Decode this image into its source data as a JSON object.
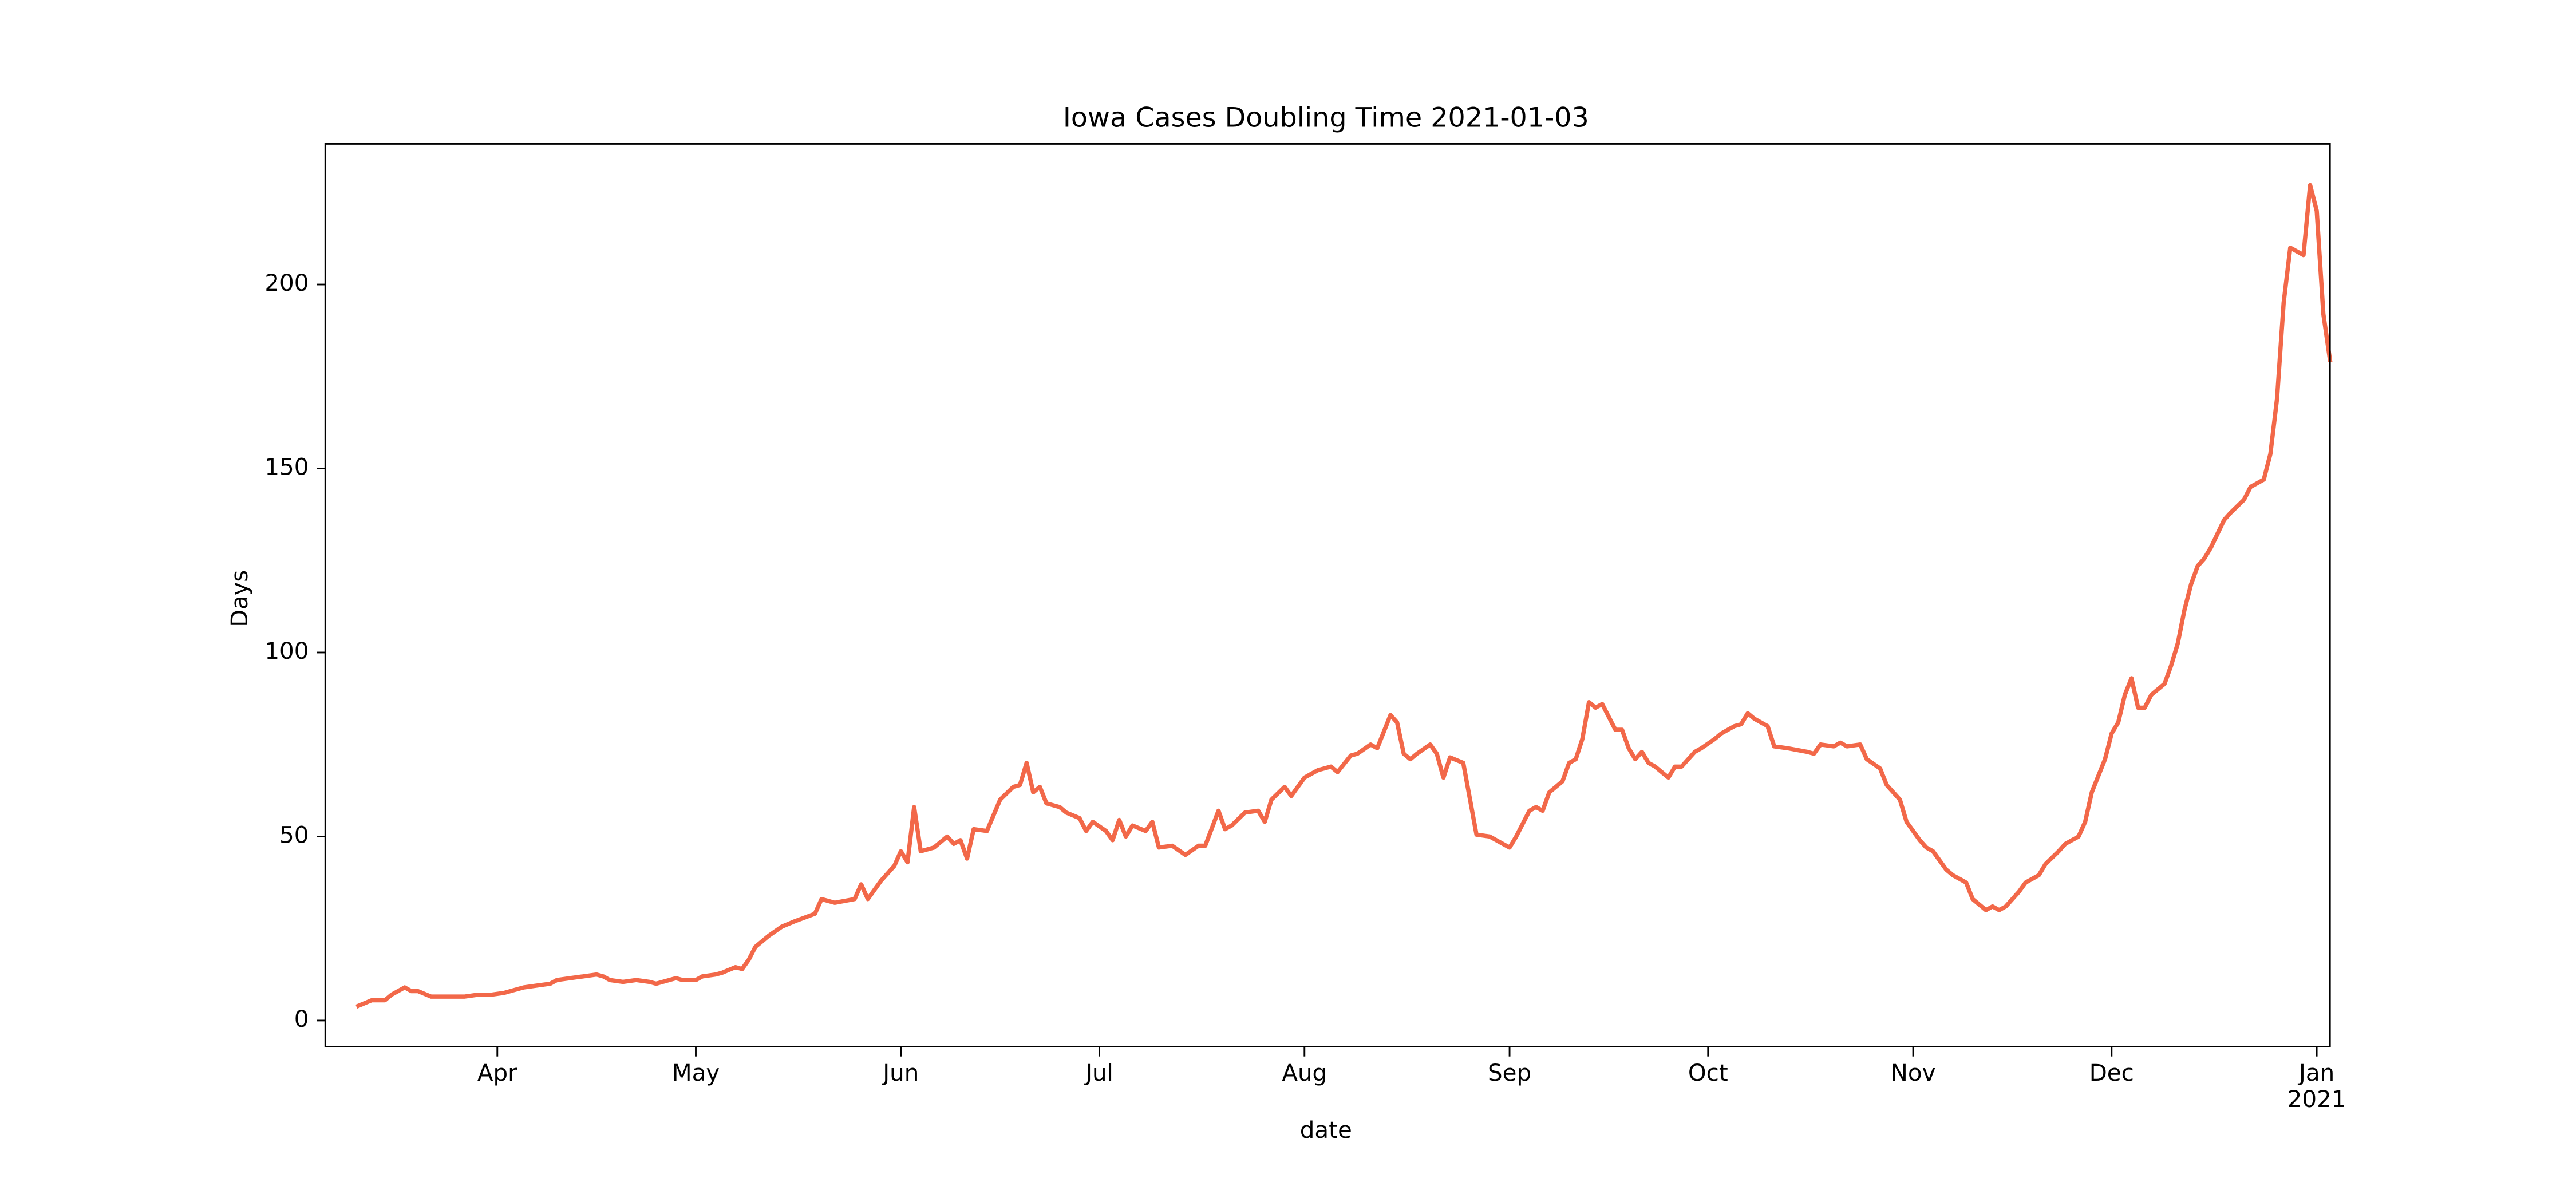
{
  "chart_data": {
    "type": "line",
    "title": "Iowa Cases Doubling Time 2021-01-03",
    "x_label": "date",
    "y_label": "Days",
    "color": "#f26849",
    "xlim": [
      "2020-03-06",
      "2021-01-03"
    ],
    "ylim": [
      -7.1,
      238.2
    ],
    "yticks": [
      0,
      50,
      100,
      150,
      200
    ],
    "xticks": [
      {
        "value": "2020-04-01",
        "label": "Apr"
      },
      {
        "value": "2020-05-01",
        "label": "May"
      },
      {
        "value": "2020-06-01",
        "label": "Jun"
      },
      {
        "value": "2020-07-01",
        "label": "Jul"
      },
      {
        "value": "2020-08-01",
        "label": "Aug"
      },
      {
        "value": "2020-09-01",
        "label": "Sep"
      },
      {
        "value": "2020-10-01",
        "label": "Oct"
      },
      {
        "value": "2020-11-01",
        "label": "Nov"
      },
      {
        "value": "2020-12-01",
        "label": "Dec"
      },
      {
        "value": "2021-01-01",
        "label": "Jan\n2021"
      }
    ],
    "x": [
      "2020-03-11",
      "2020-03-13",
      "2020-03-15",
      "2020-03-16",
      "2020-03-18",
      "2020-03-19",
      "2020-03-20",
      "2020-03-22",
      "2020-03-23",
      "2020-03-25",
      "2020-03-27",
      "2020-03-29",
      "2020-03-31",
      "2020-04-02",
      "2020-04-03",
      "2020-04-05",
      "2020-04-07",
      "2020-04-09",
      "2020-04-10",
      "2020-04-12",
      "2020-04-14",
      "2020-04-16",
      "2020-04-17",
      "2020-04-18",
      "2020-04-20",
      "2020-04-22",
      "2020-04-24",
      "2020-04-25",
      "2020-04-27",
      "2020-04-28",
      "2020-04-29",
      "2020-05-01",
      "2020-05-02",
      "2020-05-04",
      "2020-05-05",
      "2020-05-07",
      "2020-05-08",
      "2020-05-09",
      "2020-05-10",
      "2020-05-12",
      "2020-05-14",
      "2020-05-16",
      "2020-05-19",
      "2020-05-20",
      "2020-05-22",
      "2020-05-25",
      "2020-05-26",
      "2020-05-27",
      "2020-05-29",
      "2020-05-31",
      "2020-06-01",
      "2020-06-02",
      "2020-06-03",
      "2020-06-04",
      "2020-06-06",
      "2020-06-08",
      "2020-06-09",
      "2020-06-10",
      "2020-06-11",
      "2020-06-12",
      "2020-06-14",
      "2020-06-16",
      "2020-06-18",
      "2020-06-19",
      "2020-06-20",
      "2020-06-21",
      "2020-06-22",
      "2020-06-23",
      "2020-06-25",
      "2020-06-26",
      "2020-06-28",
      "2020-06-29",
      "2020-06-30",
      "2020-07-02",
      "2020-07-03",
      "2020-07-04",
      "2020-07-05",
      "2020-07-06",
      "2020-07-08",
      "2020-07-09",
      "2020-07-10",
      "2020-07-12",
      "2020-07-14",
      "2020-07-16",
      "2020-07-17",
      "2020-07-19",
      "2020-07-20",
      "2020-07-21",
      "2020-07-23",
      "2020-07-25",
      "2020-07-26",
      "2020-07-27",
      "2020-07-29",
      "2020-07-30",
      "2020-08-01",
      "2020-08-03",
      "2020-08-05",
      "2020-08-06",
      "2020-08-08",
      "2020-08-09",
      "2020-08-11",
      "2020-08-12",
      "2020-08-14",
      "2020-08-15",
      "2020-08-16",
      "2020-08-17",
      "2020-08-18",
      "2020-08-20",
      "2020-08-21",
      "2020-08-22",
      "2020-08-23",
      "2020-08-25",
      "2020-08-27",
      "2020-08-29",
      "2020-09-01",
      "2020-09-02",
      "2020-09-04",
      "2020-09-05",
      "2020-09-06",
      "2020-09-07",
      "2020-09-09",
      "2020-09-10",
      "2020-09-11",
      "2020-09-12",
      "2020-09-13",
      "2020-09-14",
      "2020-09-15",
      "2020-09-17",
      "2020-09-18",
      "2020-09-19",
      "2020-09-20",
      "2020-09-21",
      "2020-09-22",
      "2020-09-23",
      "2020-09-25",
      "2020-09-26",
      "2020-09-27",
      "2020-09-29",
      "2020-09-30",
      "2020-10-02",
      "2020-10-03",
      "2020-10-05",
      "2020-10-06",
      "2020-10-07",
      "2020-10-08",
      "2020-10-10",
      "2020-10-11",
      "2020-10-13",
      "2020-10-16",
      "2020-10-17",
      "2020-10-18",
      "2020-10-20",
      "2020-10-21",
      "2020-10-22",
      "2020-10-24",
      "2020-10-25",
      "2020-10-27",
      "2020-10-28",
      "2020-10-30",
      "2020-10-31",
      "2020-11-02",
      "2020-11-03",
      "2020-11-04",
      "2020-11-06",
      "2020-11-07",
      "2020-11-09",
      "2020-11-10",
      "2020-11-12",
      "2020-11-13",
      "2020-11-14",
      "2020-11-15",
      "2020-11-17",
      "2020-11-18",
      "2020-11-20",
      "2020-11-21",
      "2020-11-23",
      "2020-11-24",
      "2020-11-26",
      "2020-11-27",
      "2020-11-28",
      "2020-11-30",
      "2020-12-01",
      "2020-12-02",
      "2020-12-03",
      "2020-12-04",
      "2020-12-05",
      "2020-12-06",
      "2020-12-07",
      "2020-12-09",
      "2020-12-10",
      "2020-12-11",
      "2020-12-12",
      "2020-12-13",
      "2020-12-14",
      "2020-12-15",
      "2020-12-16",
      "2020-12-18",
      "2020-12-19",
      "2020-12-21",
      "2020-12-22",
      "2020-12-24",
      "2020-12-25",
      "2020-12-26",
      "2020-12-27",
      "2020-12-28",
      "2020-12-30",
      "2020-12-31",
      "2021-01-01",
      "2021-01-02",
      "2021-01-03"
    ],
    "values": [
      4,
      5.5,
      5.5,
      7,
      9,
      8,
      8,
      6.5,
      6.5,
      6.5,
      6.5,
      7,
      7,
      7.5,
      8,
      9,
      9.5,
      10,
      11,
      11.5,
      12,
      12.5,
      12,
      11,
      10.5,
      11,
      10.5,
      10,
      11,
      11.5,
      11,
      11,
      12,
      12.5,
      13,
      14.5,
      14,
      16.5,
      20,
      23,
      25.5,
      27,
      29,
      33,
      32,
      33,
      37,
      33,
      38,
      42,
      46,
      43,
      58,
      46,
      47,
      50,
      48,
      49,
      44,
      52,
      51.5,
      60,
      63.5,
      64,
      70,
      62,
      63.5,
      59,
      58,
      56.5,
      55,
      51.5,
      54,
      51.5,
      49,
      54.5,
      50,
      53,
      51.5,
      54,
      47,
      47.5,
      45,
      47.5,
      47.5,
      57,
      52,
      53,
      56.5,
      57,
      54,
      60,
      63.5,
      61,
      66,
      68,
      69,
      67.5,
      72,
      72.5,
      75,
      74,
      83,
      81,
      72.5,
      71,
      72.5,
      75,
      72.5,
      66,
      71.5,
      70,
      50.5,
      50,
      47,
      50,
      57,
      58,
      57,
      62,
      65,
      70,
      71,
      76.5,
      86.5,
      85,
      86,
      79,
      79,
      74,
      71,
      73,
      70,
      69,
      66,
      69,
      69,
      73,
      74,
      76.5,
      78,
      80,
      80.5,
      83.5,
      82,
      80,
      74.5,
      74,
      73,
      72.5,
      75,
      74.5,
      75.5,
      74.5,
      75,
      71,
      68.5,
      64,
      60,
      54,
      49,
      47,
      46,
      41,
      39.5,
      37.5,
      33,
      30,
      31,
      30,
      31,
      35,
      37.5,
      39.5,
      42.5,
      46,
      48,
      50,
      54,
      62,
      71,
      78,
      81,
      88.5,
      93,
      85,
      85,
      88.5,
      91.5,
      96.5,
      102.5,
      111.5,
      118.5,
      123.5,
      125.5,
      128.5,
      136,
      138,
      141.5,
      145,
      147,
      154,
      169,
      195,
      210,
      208,
      227,
      220,
      192,
      179.5
    ]
  }
}
